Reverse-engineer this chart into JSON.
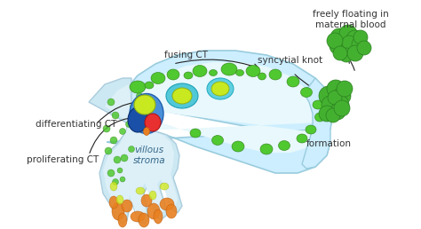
{
  "background_color": "#ffffff",
  "fig_width": 4.74,
  "fig_height": 2.58,
  "dpi": 100,
  "labels": {
    "proliferating_CT": "proliferating CT",
    "differentiating_CT": "differentiating CT",
    "fusing_CT": "fusing CT",
    "syncytial_knot": "syncytial knot",
    "formation": "formation",
    "freely_floating": "freely floating in\nmaternal blood",
    "villous_stroma": "villous\nstroma"
  },
  "colors": {
    "outer_light": "#cceeff",
    "outer_border": "#99ccdd",
    "inner_white": "#e8f8fc",
    "stroma_fill": "#ddeef8",
    "stroma_border": "#aaccdd",
    "blue_cell": "#3a80c8",
    "blue_dark": "#1a50a0",
    "cyan_cell": "#40c0d0",
    "ygreen_nuc": "#c8e820",
    "green_nuc": "#70c830",
    "red_blob": "#e03030",
    "orange_spot": "#e88020",
    "knot_fill": "#44b030",
    "knot_border": "#2a8020",
    "arrow_color": "#222222",
    "text_color": "#333333"
  }
}
